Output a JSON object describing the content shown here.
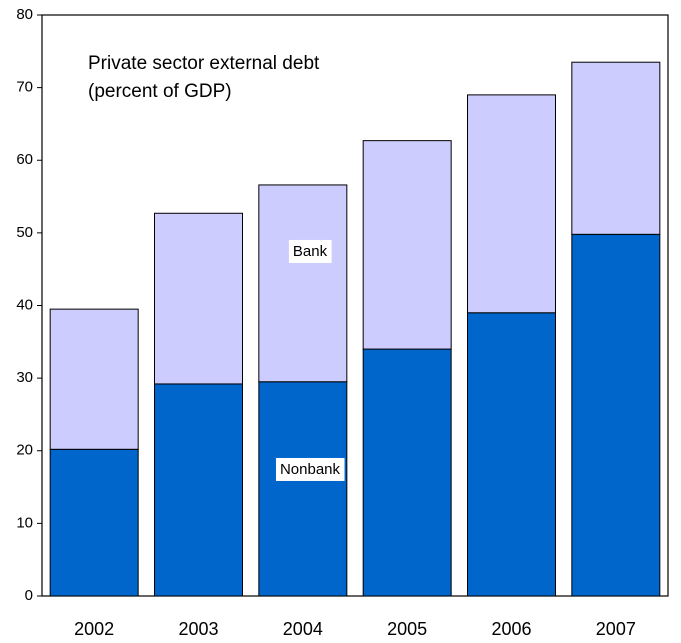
{
  "chart_data": {
    "type": "stacked-bar",
    "title": "Private sector external debt",
    "subtitle": "(percent of GDP)",
    "categories": [
      "2002",
      "2003",
      "2004",
      "2005",
      "2006",
      "2007"
    ],
    "series": [
      {
        "name": "Nonbank",
        "color": "#0066cc",
        "values": [
          20.2,
          29.2,
          29.5,
          34.0,
          39.0,
          49.8
        ]
      },
      {
        "name": "Bank",
        "color": "#ccccff",
        "values": [
          19.3,
          23.5,
          27.1,
          28.7,
          30.0,
          23.7
        ]
      }
    ],
    "ylim": [
      0,
      80
    ],
    "yticks": [
      0,
      10,
      20,
      30,
      40,
      50,
      60,
      70,
      80
    ]
  }
}
